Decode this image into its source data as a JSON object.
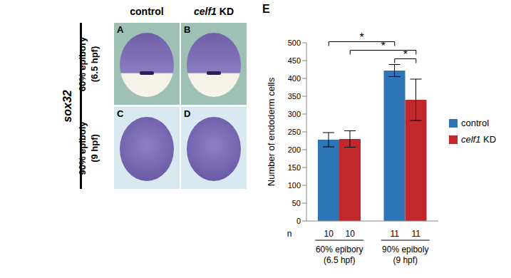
{
  "panels": {
    "row_label": "sox32",
    "columns": [
      "control",
      "celf1 KD"
    ],
    "rows": [
      "60% epibory (6.5 hpf)",
      "90% epiboly (9 hpf)"
    ],
    "letters": [
      [
        "A",
        "B"
      ],
      [
        "C",
        "D"
      ]
    ]
  },
  "chart_data": {
    "type": "bar",
    "panel_label": "E",
    "categories": [
      "60% epibory (6.5 hpf)",
      "90% epiboly (9 hpf)"
    ],
    "y_label": "Number of endoderm cells",
    "ylim": [
      0,
      500
    ],
    "yticks": [
      0,
      50,
      100,
      150,
      200,
      250,
      300,
      350,
      400,
      450,
      500
    ],
    "grid": false,
    "legend": "right",
    "n_label": "n",
    "series": [
      {
        "name": "control",
        "color": "#2e75b6",
        "values": [
          228,
          422
        ],
        "errors": [
          20,
          17
        ],
        "n": [
          10,
          11
        ]
      },
      {
        "name": "celf1 KD",
        "color": "#c0282d",
        "values": [
          230,
          340
        ],
        "errors": [
          23,
          58
        ],
        "n": [
          10,
          11
        ]
      }
    ],
    "significance": [
      {
        "a": [
          0,
          0
        ],
        "b": [
          0,
          1
        ],
        "label": "*"
      },
      {
        "a": [
          1,
          0
        ],
        "b": [
          1,
          1
        ],
        "label": "*"
      },
      {
        "a": [
          0,
          1
        ],
        "b": [
          1,
          1
        ],
        "label": "*"
      }
    ]
  }
}
